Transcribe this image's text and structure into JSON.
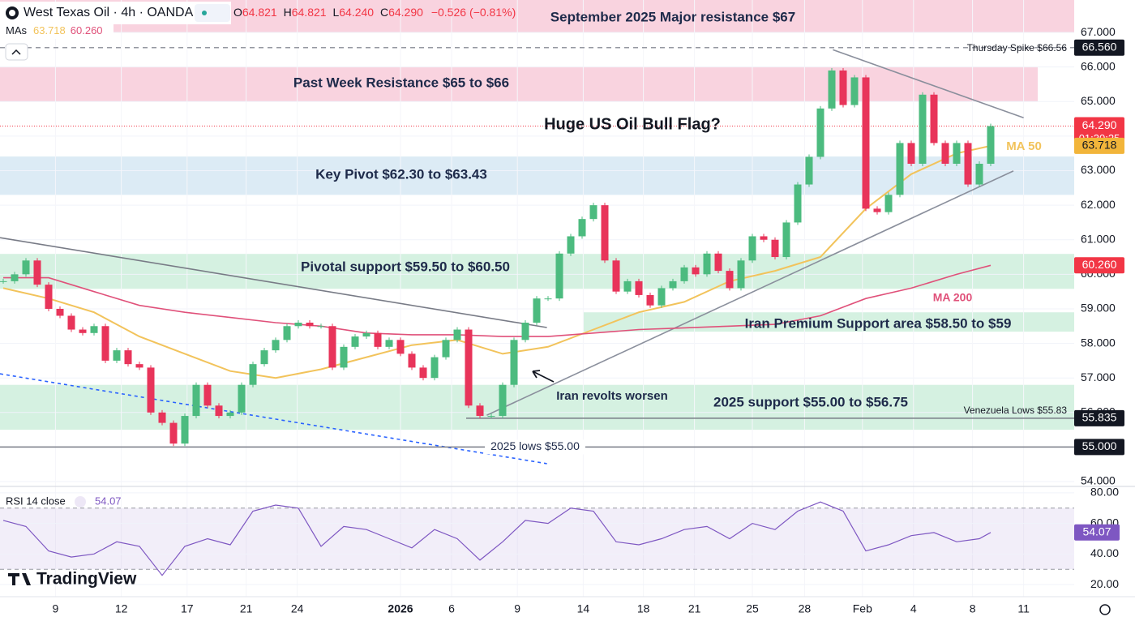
{
  "header": {
    "symbol": "West Texas Oil · 4h · OANDA",
    "ohlc": [
      {
        "key": "O",
        "value": "64.821"
      },
      {
        "key": "H",
        "value": "64.821"
      },
      {
        "key": "L",
        "value": "64.240"
      },
      {
        "key": "C",
        "value": "64.290"
      }
    ],
    "change": "−0.526",
    "change_pct": "(−0.81%)",
    "mas": "MAs",
    "ma50": "63.718",
    "ma200": "60.260"
  },
  "logo": "TradingView",
  "chart_data": {
    "type": "candlestick",
    "price": {
      "values": [
        59.8,
        60.0,
        60.4,
        59.7,
        59.0,
        58.8,
        58.4,
        58.3,
        58.5,
        57.5,
        57.8,
        57.4,
        57.3,
        56.0,
        55.7,
        55.1,
        55.9,
        56.8,
        56.2,
        55.9,
        56.0,
        56.8,
        57.4,
        57.8,
        58.1,
        58.5,
        58.6,
        58.5,
        58.5,
        57.3,
        57.9,
        58.2,
        58.3,
        57.9,
        58.1,
        57.7,
        57.3,
        57.0,
        57.6,
        58.1,
        58.4,
        56.2,
        55.9,
        55.9,
        56.8,
        58.1,
        58.6,
        59.3,
        59.3,
        60.6,
        61.1,
        61.6,
        62.0,
        60.4,
        59.5,
        59.8,
        59.4,
        59.1,
        59.6,
        59.8,
        60.2,
        60.0,
        60.6,
        60.1,
        59.6,
        60.4,
        61.1,
        61.0,
        60.5,
        61.5,
        62.6,
        63.4,
        64.8,
        65.9,
        64.9,
        65.7,
        61.9,
        61.8,
        62.3,
        63.8,
        63.2,
        65.2,
        63.8,
        63.2,
        63.8,
        62.6,
        63.2,
        64.29
      ],
      "up_color": "#4cbb7f",
      "down_color": "#e8345a"
    },
    "ma50": {
      "name": "MA 50",
      "color": "#f2c35b",
      "x": [
        0,
        4,
        8,
        12,
        16,
        20,
        24,
        28,
        32,
        36,
        40,
        44,
        48,
        52,
        56,
        60,
        64,
        68,
        72,
        76,
        80,
        84,
        87
      ],
      "values": [
        59.6,
        59.3,
        58.9,
        58.2,
        57.7,
        57.2,
        57.0,
        57.25,
        57.6,
        57.95,
        58.1,
        57.7,
        57.9,
        58.4,
        58.9,
        59.2,
        59.8,
        60.1,
        60.5,
        61.9,
        62.9,
        63.5,
        63.718
      ],
      "last_label": "63.718"
    },
    "ma200": {
      "name": "MA 200",
      "color": "#e0517a",
      "x": [
        0,
        4,
        8,
        12,
        16,
        20,
        24,
        28,
        32,
        36,
        40,
        44,
        48,
        52,
        56,
        60,
        64,
        68,
        72,
        76,
        80,
        84,
        87
      ],
      "values": [
        59.9,
        59.9,
        59.5,
        59.1,
        58.9,
        58.75,
        58.6,
        58.5,
        58.3,
        58.25,
        58.25,
        58.2,
        58.2,
        58.3,
        58.4,
        58.45,
        58.5,
        58.55,
        58.8,
        59.3,
        59.6,
        60.0,
        60.26
      ],
      "last_label": "60.260"
    },
    "current_price": {
      "value": 64.29,
      "label": "64.290",
      "countdown": "01:30:25",
      "color": "#f23645"
    },
    "ylim": [
      53.86,
      67.94
    ],
    "yticks": [
      {
        "value": 54,
        "label": "54.000"
      },
      {
        "value": 55,
        "label": "55.000"
      },
      {
        "value": 56,
        "label": "56.000"
      },
      {
        "value": 57,
        "label": "57.000"
      },
      {
        "value": 58,
        "label": "58.000"
      },
      {
        "value": 59,
        "label": "59.000"
      },
      {
        "value": 60,
        "label": "60.000"
      },
      {
        "value": 61,
        "label": "61.000"
      },
      {
        "value": 62,
        "label": "62.000"
      },
      {
        "value": 63,
        "label": "63.000"
      },
      {
        "value": 64,
        "label": "64.000"
      },
      {
        "value": 65,
        "label": "65.000"
      },
      {
        "value": 66,
        "label": "66.000"
      },
      {
        "value": 67,
        "label": "67.000"
      }
    ],
    "xlim": [
      -0.286,
      94.357
    ],
    "xticks": [
      {
        "value": 4.6,
        "label": "9"
      },
      {
        "value": 10.4,
        "label": "12"
      },
      {
        "value": 16.2,
        "label": "17"
      },
      {
        "value": 21.4,
        "label": "21"
      },
      {
        "value": 25.9,
        "label": "24"
      },
      {
        "value": 35.0,
        "label": "2026"
      },
      {
        "value": 39.5,
        "label": "6"
      },
      {
        "value": 45.3,
        "label": "9"
      },
      {
        "value": 51.1,
        "label": "14"
      },
      {
        "value": 56.4,
        "label": "18"
      },
      {
        "value": 60.9,
        "label": "21"
      },
      {
        "value": 66.0,
        "label": "25"
      },
      {
        "value": 70.6,
        "label": "28"
      },
      {
        "value": 75.7,
        "label": "Feb"
      },
      {
        "value": 80.2,
        "label": "4"
      },
      {
        "value": 85.4,
        "label": "8"
      },
      {
        "value": 89.9,
        "label": "11"
      }
    ],
    "grid": true,
    "zones": [
      {
        "label": "September 2025 Major resistance $67",
        "range": [
          67.0,
          67.94
        ],
        "color": "#f9d3df"
      },
      {
        "label": "Past Week Resistance $65 to $66",
        "range": [
          65.0,
          66.01
        ],
        "color": "#f9d3df"
      },
      {
        "label": "Key Pivot $62.30 to $63.43",
        "range": [
          62.3,
          63.41
        ],
        "color": "#dcebf5"
      },
      {
        "label": "Pivotal support $59.50 to $60.50",
        "range": [
          59.58,
          60.59
        ],
        "color": "#d5f1e1"
      },
      {
        "label": "Iran Premium Support area $58.50 to $59",
        "range": [
          58.34,
          58.9
        ],
        "color": "#d5f1e1"
      },
      {
        "label": "2025 support $55.00 to $56.75",
        "range": [
          55.5,
          56.8
        ],
        "color": "#d5f1e1"
      }
    ],
    "levels": [
      {
        "text": "Thursday Spike $66.56",
        "price": {
          "value": 66.56,
          "label": "66.560"
        }
      },
      {
        "text": "Venezuela Lows $55.83",
        "price": {
          "value": 55.835,
          "label": "55.835"
        }
      },
      {
        "text": "2025 lows $55.00",
        "price": {
          "value": 55,
          "label": "55.000"
        }
      }
    ],
    "trendlines": [
      {
        "x": [
          -0.286,
          47.9
        ],
        "values": [
          61.06,
          58.46
        ],
        "color": "#787b86"
      },
      {
        "x": [
          -0.286,
          47.9
        ],
        "values": [
          57.12,
          54.52
        ],
        "color": "#2962ff"
      },
      {
        "x": [
          73.1,
          89.9
        ],
        "values": [
          66.5,
          64.53
        ],
        "color": "#8a8f9c"
      },
      {
        "x": [
          42.6,
          89.0
        ],
        "values": [
          55.92,
          62.99
        ],
        "color": "#8a8f9c"
      }
    ],
    "annotations": [
      "Huge US Oil Bull Flag?",
      "Iran revolts worsen"
    ],
    "rsi": {
      "name": "RSI 14 close",
      "last": 54.07,
      "color": "#7e57c2",
      "x": [
        0,
        2,
        4,
        6,
        8,
        10,
        12,
        14,
        16,
        18,
        20,
        22,
        24,
        26,
        28,
        30,
        32,
        34,
        36,
        38,
        40,
        42,
        44,
        46,
        48,
        50,
        52,
        54,
        56,
        58,
        60,
        62,
        64,
        66,
        68,
        70,
        72,
        74,
        76,
        78,
        80,
        82,
        84,
        86,
        87
      ],
      "values": [
        62,
        58,
        42,
        38,
        40,
        48,
        45,
        26,
        45,
        50,
        46,
        68,
        72,
        70,
        45,
        58,
        56,
        50,
        44,
        56,
        50,
        36,
        48,
        62,
        60,
        70,
        68,
        48,
        46,
        50,
        56,
        58,
        50,
        60,
        56,
        68,
        74,
        68,
        42,
        46,
        52,
        54,
        48,
        50,
        54.07
      ],
      "ylim": [
        12.6,
        84.2
      ],
      "yticks": [
        {
          "value": 20,
          "label": "20.00"
        },
        {
          "value": 40,
          "label": "40.00"
        },
        {
          "value": 60,
          "label": "60.00"
        },
        {
          "value": 80,
          "label": "80.00"
        }
      ],
      "band": [
        30,
        70
      ]
    }
  }
}
